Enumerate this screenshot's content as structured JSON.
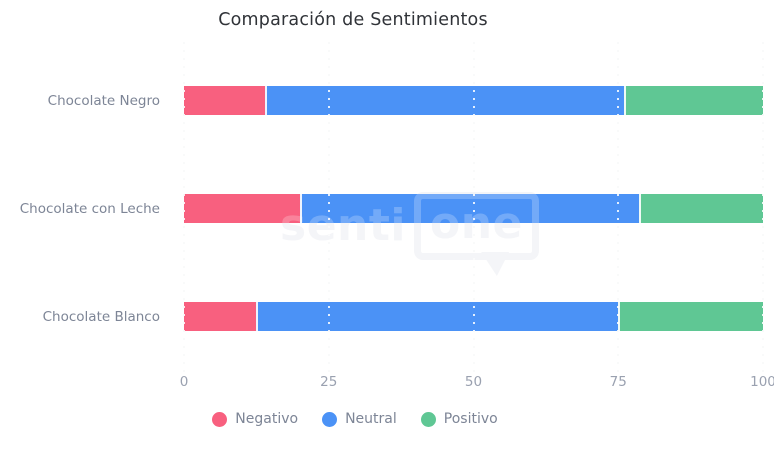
{
  "chart_data": {
    "type": "bar",
    "orientation": "horizontal",
    "stacked": true,
    "title": "Comparación de Sentimientos",
    "categories": [
      "Chocolate Negro",
      "Chocolate con Leche",
      "Chocolate Blanco"
    ],
    "series": [
      {
        "name": "Negativo",
        "color": "#F8607F",
        "values": [
          14,
          20,
          12.5
        ]
      },
      {
        "name": "Neutral",
        "color": "#4B92F6",
        "values": [
          62,
          58.5,
          62.5
        ]
      },
      {
        "name": "Positivo",
        "color": "#5FC794",
        "values": [
          24,
          21.5,
          25
        ]
      }
    ],
    "x_ticks": [
      0,
      25,
      50,
      75,
      100
    ],
    "xlim": [
      0,
      100
    ],
    "grid": "dotted-vertical",
    "legend_position": "bottom",
    "bar_totals": [
      100,
      100,
      100
    ]
  },
  "watermark": {
    "text": "sentione",
    "part1": "senti",
    "part2": "one"
  },
  "colors": {
    "title_text": "#303338",
    "axis_label_text": "#7d8596",
    "tick_text": "#9aa1b0",
    "gridline": "#d9dbe1",
    "background": "#ffffff"
  }
}
